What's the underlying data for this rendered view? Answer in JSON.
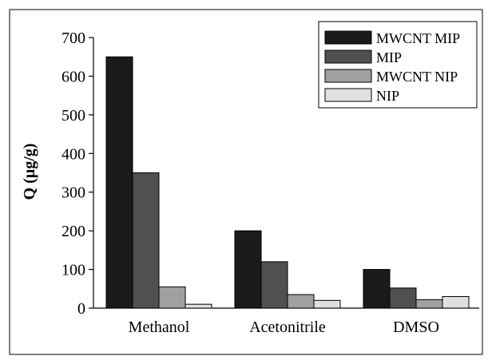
{
  "chart_data": {
    "type": "bar",
    "title": "",
    "xlabel": "",
    "ylabel": "Q (µg/g)",
    "ylim": [
      0,
      700
    ],
    "yticks": [
      0,
      100,
      200,
      300,
      400,
      500,
      600,
      700
    ],
    "categories": [
      "Methanol",
      "Acetonitrile",
      "DMSO"
    ],
    "series": [
      {
        "name": "MWCNT MIP",
        "values": [
          650,
          200,
          100
        ],
        "color": "#1a1a1a"
      },
      {
        "name": "MIP",
        "values": [
          350,
          120,
          52
        ],
        "color": "#505050"
      },
      {
        "name": "MWCNT NIP",
        "values": [
          55,
          35,
          22
        ],
        "color": "#a0a0a0"
      },
      {
        "name": "NIP",
        "values": [
          10,
          20,
          30
        ],
        "color": "#e0e0e0"
      }
    ],
    "grid": false,
    "legend_position": "top-right"
  }
}
